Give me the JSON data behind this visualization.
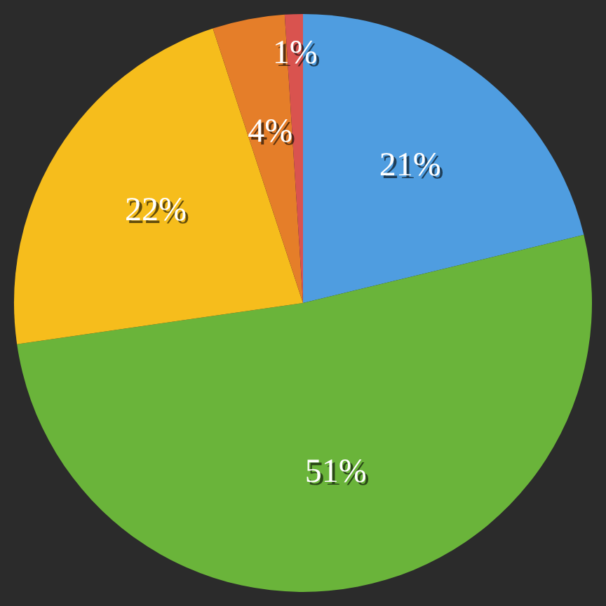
{
  "chart_data": {
    "type": "pie",
    "categories": [
      null,
      null,
      null,
      null,
      null
    ],
    "values": [
      21,
      51,
      22,
      4,
      1
    ],
    "colors": [
      "#4f9de0",
      "#6ab43a",
      "#f6bd1c",
      "#e57e29",
      "#d9534f"
    ],
    "value_labels": [
      "21%",
      "51%",
      "22%",
      "4%",
      "1%"
    ]
  }
}
